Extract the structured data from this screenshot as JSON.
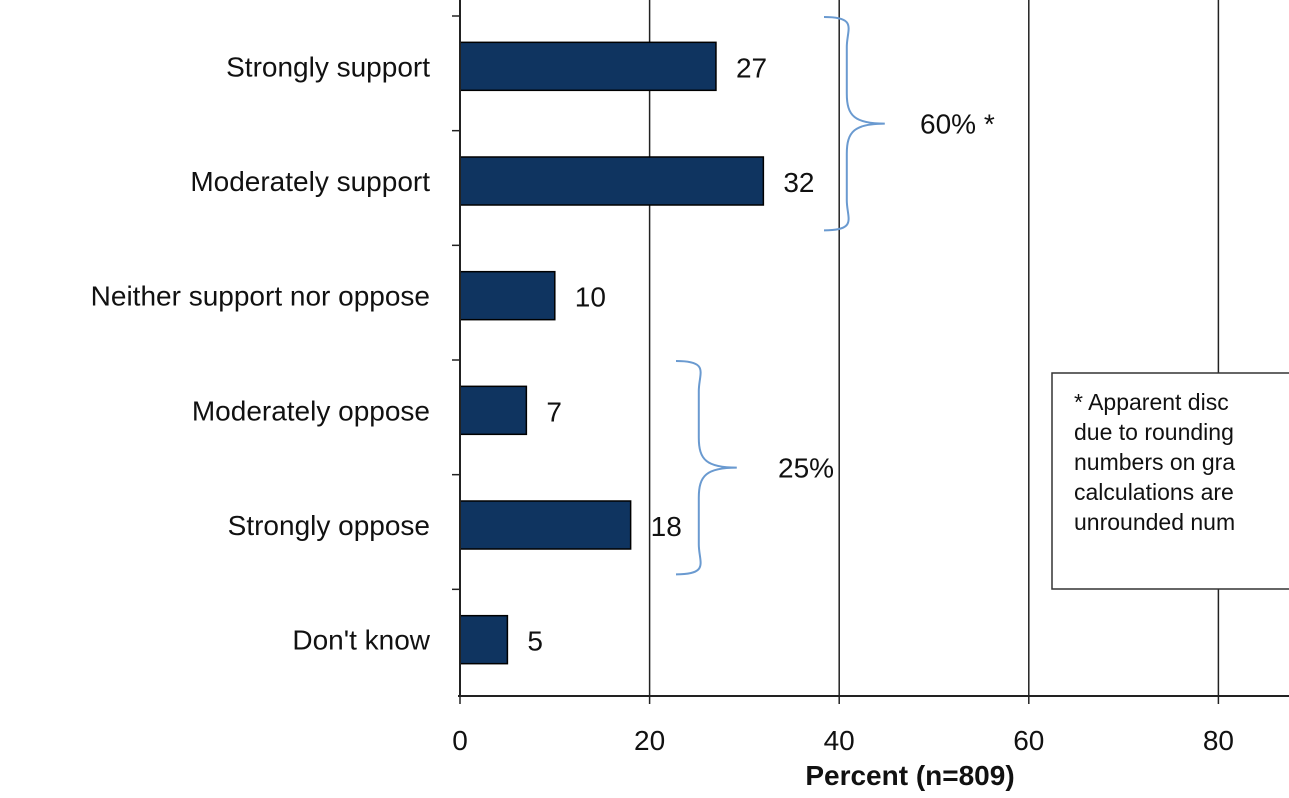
{
  "chart_data": {
    "type": "bar",
    "orientation": "horizontal",
    "categories": [
      "Strongly support",
      "Moderately support",
      "Neither support nor oppose",
      "Moderately oppose",
      "Strongly oppose",
      "Don't know"
    ],
    "values": [
      27,
      32,
      10,
      7,
      18,
      5
    ],
    "value_labels": [
      "27",
      "32",
      "10",
      "7",
      "18",
      "5"
    ],
    "xlabel": "Percent (n=809)",
    "xlim": [
      0,
      80
    ],
    "xticks": [
      "0",
      "20",
      "40",
      "60",
      "80"
    ],
    "grid": true,
    "bar_color": "#0f3460",
    "bracket_color": "#6a9ad0",
    "annotations": [
      {
        "name": "support-bracket",
        "label": "60% *",
        "categories": [
          "Strongly support",
          "Moderately support"
        ]
      },
      {
        "name": "oppose-bracket",
        "label": "25%",
        "categories": [
          "Moderately oppose",
          "Strongly oppose"
        ]
      }
    ],
    "note_lines": [
      "* Apparent disc",
      "due to rounding",
      "numbers on gra",
      "calculations are",
      "unrounded num"
    ]
  }
}
